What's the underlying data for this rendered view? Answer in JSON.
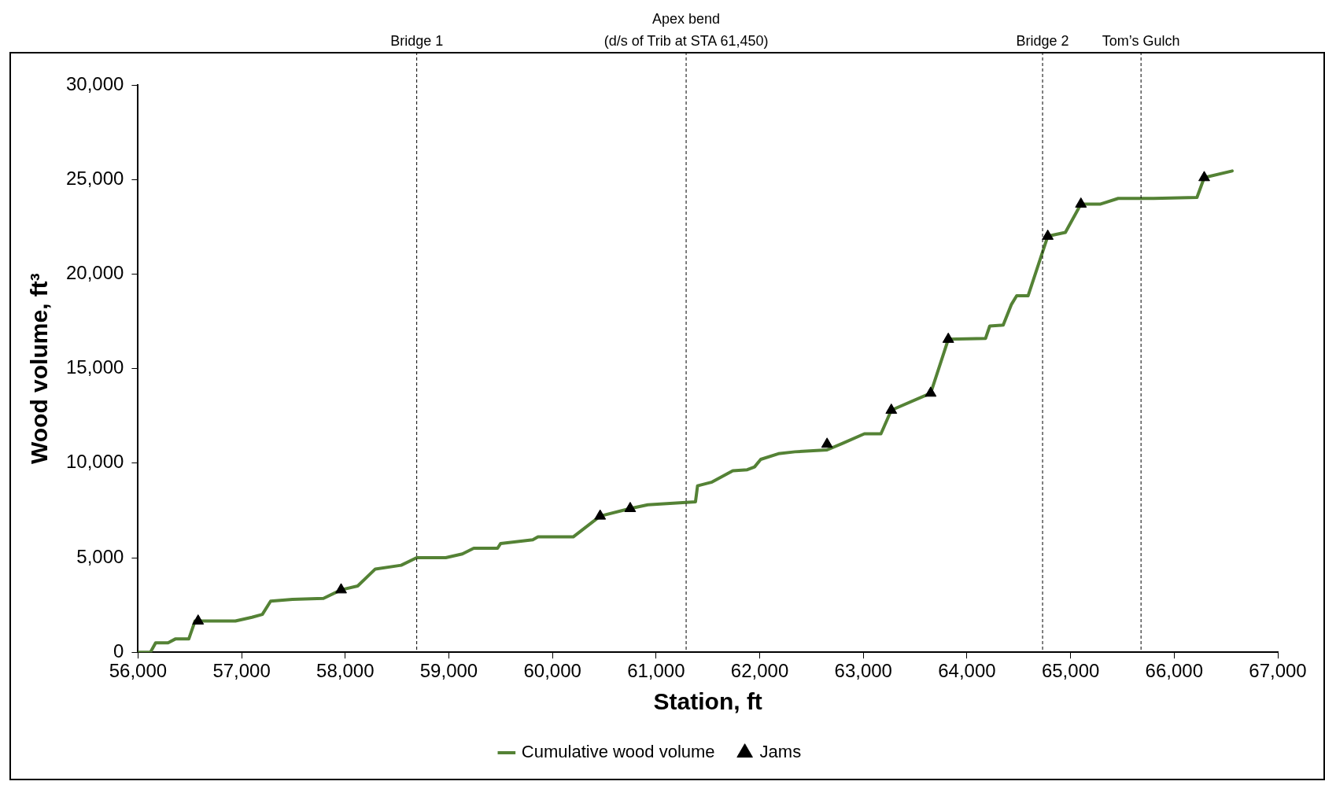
{
  "chart_data": {
    "type": "line",
    "xlabel": "Station, ft",
    "ylabel": "Wood volume, ft³",
    "xlim": [
      56000,
      67000
    ],
    "xticks": [
      {
        "value": 56000,
        "label": "56,000"
      },
      {
        "value": 57000,
        "label": "57,000"
      },
      {
        "value": 58000,
        "label": "58,000"
      },
      {
        "value": 59000,
        "label": "59,000"
      },
      {
        "value": 60000,
        "label": "60,000"
      },
      {
        "value": 61000,
        "label": "61,000"
      },
      {
        "value": 62000,
        "label": "62,000"
      },
      {
        "value": 63000,
        "label": "63,000"
      },
      {
        "value": 64000,
        "label": "64,000"
      },
      {
        "value": 65000,
        "label": "65,000"
      },
      {
        "value": 66000,
        "label": "66,000"
      },
      {
        "value": 67000,
        "label": "67,000"
      }
    ],
    "ylim": [
      0,
      30000
    ],
    "yticks": [
      0,
      {
        "value": 5000,
        "label": "5,000"
      },
      {
        "value": 10000,
        "label": "10,000"
      },
      {
        "value": 15000,
        "label": "15,000"
      },
      {
        "value": 20000,
        "label": "20,000"
      },
      {
        "value": 25000,
        "label": "25,000"
      },
      {
        "value": 30000,
        "label": "30,000"
      }
    ],
    "grid": false,
    "legend": "bottom",
    "series": [
      {
        "name": "Cumulative wood volume",
        "color": "#548235",
        "marker": "none",
        "line_style": "solid",
        "x": [
          56000,
          56120,
          56170,
          56290,
          56360,
          56490,
          56550,
          56940,
          57100,
          57200,
          57280,
          57490,
          57790,
          57960,
          58120,
          58290,
          58540,
          58690,
          58970,
          59130,
          59240,
          59470,
          59500,
          59810,
          59860,
          60200,
          60460,
          60750,
          60920,
          61380,
          61400,
          61540,
          61740,
          61880,
          61950,
          62010,
          62180,
          62340,
          62650,
          62800,
          63010,
          63170,
          63270,
          63650,
          63820,
          64180,
          64220,
          64350,
          64430,
          64480,
          64590,
          64780,
          64950,
          65100,
          65290,
          65460,
          65800,
          66220,
          66290,
          66560
        ],
        "values": [
          0,
          0,
          500,
          500,
          700,
          700,
          1650,
          1650,
          1850,
          2000,
          2700,
          2800,
          2850,
          3300,
          3500,
          4400,
          4600,
          5000,
          5000,
          5200,
          5500,
          5500,
          5750,
          5950,
          6100,
          6100,
          7200,
          7600,
          7800,
          7950,
          8800,
          9000,
          9600,
          9650,
          9800,
          10200,
          10500,
          10600,
          10700,
          11050,
          11550,
          11550,
          12800,
          13700,
          16550,
          16600,
          17250,
          17300,
          18400,
          18850,
          18850,
          22000,
          22200,
          23700,
          23700,
          24000,
          24000,
          24050,
          25100,
          25450
        ]
      },
      {
        "name": "Jams",
        "type": "scatter",
        "color": "#000000",
        "marker": "triangle",
        "x": [
          56580,
          57960,
          60460,
          60750,
          62650,
          63270,
          63650,
          63820,
          64780,
          65100,
          66290
        ],
        "values": [
          1650,
          3300,
          7200,
          7600,
          11000,
          12800,
          13700,
          16550,
          22000,
          23700,
          25100
        ]
      }
    ],
    "ref_lines": [
      {
        "axis": "x",
        "value": 58690,
        "label": "Bridge 1",
        "color": "#000000",
        "line_style": "dashed"
      },
      {
        "axis": "x",
        "value": 61290,
        "label": "Apex bend\n(d/s of Trib at STA 61,450)",
        "color": "#000000",
        "line_style": "dashed"
      },
      {
        "axis": "x",
        "value": 64730,
        "label": "Bridge 2",
        "color": "#000000",
        "line_style": "dashed"
      },
      {
        "axis": "x",
        "value": 65680,
        "label": "Tom’s Gulch",
        "color": "#000000",
        "line_style": "dashed"
      }
    ]
  }
}
